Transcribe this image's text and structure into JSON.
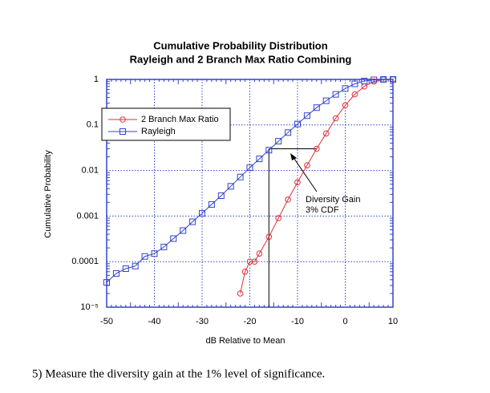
{
  "chart_data": {
    "type": "line",
    "title": "Cumulative Probability Distribution",
    "subtitle": "Rayleigh and 2 Branch Max Ratio Combining",
    "x_label": "dB Relative to Mean",
    "y_label": "Cumulative Probability",
    "xlim": [
      -50,
      10
    ],
    "xticks": [
      -50,
      -40,
      -30,
      -20,
      -10,
      0,
      10
    ],
    "ylim": [
      1e-05,
      1
    ],
    "log_y": true,
    "yticks": [
      {
        "value": 1e-05,
        "label": "10⁻⁵"
      },
      0.0001,
      0.001,
      0.01,
      0.1,
      1
    ],
    "grid": true,
    "legend": "upper left",
    "series": [
      {
        "name": "2 Branch Max Ratio",
        "color": "#e0303a",
        "marker": "circle",
        "x": [
          -22,
          -21,
          -20,
          -19,
          -18,
          -16,
          -14,
          -12,
          -10,
          -8,
          -6,
          -4,
          -2,
          0,
          2,
          4,
          6,
          8,
          10
        ],
        "values": [
          2e-05,
          6e-05,
          0.0001,
          0.0001,
          0.00015,
          0.00035,
          0.0009,
          0.0023,
          0.0055,
          0.013,
          0.03,
          0.065,
          0.14,
          0.27,
          0.47,
          0.7,
          0.9,
          0.99,
          1
        ]
      },
      {
        "name": "Rayleigh",
        "color": "#3344cc",
        "marker": "square",
        "x": [
          -50,
          -48,
          -46,
          -44,
          -42,
          -40,
          -38,
          -36,
          -34,
          -32,
          -30,
          -28,
          -26,
          -24,
          -22,
          -20,
          -18,
          -16,
          -14,
          -12,
          -10,
          -8,
          -6,
          -4,
          -2,
          0,
          2,
          4,
          6,
          8,
          10
        ],
        "values": [
          3.5e-05,
          5.5e-05,
          7e-05,
          8e-05,
          0.00013,
          0.00015,
          0.00021,
          0.00032,
          0.00048,
          0.00075,
          0.00115,
          0.0018,
          0.0028,
          0.0045,
          0.0072,
          0.0115,
          0.018,
          0.028,
          0.044,
          0.068,
          0.105,
          0.16,
          0.24,
          0.34,
          0.47,
          0.63,
          0.8,
          0.92,
          0.98,
          0.999,
          1
        ]
      }
    ],
    "annotation": {
      "text": [
        "Diversity Gain",
        "3% CDF"
      ],
      "x_start": -16,
      "x_end": -6,
      "y": 0.03
    }
  },
  "caption": "5) Measure the diversity gain at the 1% level of significance."
}
